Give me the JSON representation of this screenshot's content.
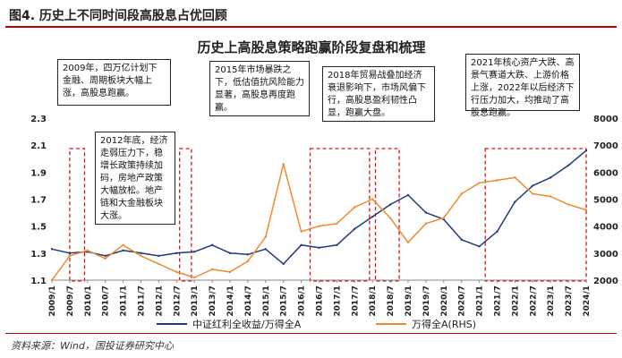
{
  "figure_label": "图4. 历史上不同时间段高股息占优回顾",
  "source": "资料来源：Wind，国投证券研究中心",
  "chart_data": {
    "type": "line",
    "title": "历史上高股息策略跑赢阶段复盘和梳理",
    "x": [
      "2009/1",
      "2009/7",
      "2010/1",
      "2010/7",
      "2011/1",
      "2011/7",
      "2012/1",
      "2012/7",
      "2013/1",
      "2013/7",
      "2014/1",
      "2014/7",
      "2015/1",
      "2015/7",
      "2016/1",
      "2016/7",
      "2017/1",
      "2017/7",
      "2018/1",
      "2018/7",
      "2019/1",
      "2019/7",
      "2020/1",
      "2020/7",
      "2021/1",
      "2021/7",
      "2022/1",
      "2022/7",
      "2023/1",
      "2023/7",
      "2024/1"
    ],
    "left_axis": {
      "ylim": [
        1.1,
        2.3
      ],
      "ticks": [
        "1.1",
        "1.3",
        "1.5",
        "1.7",
        "1.9",
        "2.1",
        "2.3"
      ]
    },
    "right_axis": {
      "ylim": [
        2000,
        8000
      ],
      "ticks": [
        "2000",
        "3000",
        "4000",
        "5000",
        "6000",
        "7000",
        "8000"
      ]
    },
    "series": [
      {
        "name": "中证红利全收益/万得全A",
        "axis": "left",
        "color": "#1f3a7a",
        "values": [
          1.33,
          1.3,
          1.31,
          1.28,
          1.32,
          1.3,
          1.28,
          1.3,
          1.31,
          1.36,
          1.3,
          1.29,
          1.33,
          1.22,
          1.36,
          1.34,
          1.36,
          1.48,
          1.57,
          1.66,
          1.73,
          1.6,
          1.55,
          1.4,
          1.35,
          1.46,
          1.68,
          1.8,
          1.86,
          1.95,
          2.06
        ]
      },
      {
        "name": "万得全A(RHS)",
        "axis": "right",
        "color": "#f08a2c",
        "values": [
          2000,
          2900,
          3100,
          2800,
          3300,
          2900,
          2600,
          2300,
          2100,
          2400,
          2300,
          2700,
          3600,
          6300,
          3800,
          4000,
          4100,
          4700,
          5000,
          4300,
          3400,
          4100,
          4300,
          5200,
          5600,
          5700,
          5800,
          5200,
          5100,
          4800,
          4600
        ]
      }
    ],
    "highlight_periods": [
      {
        "from": "2009/7",
        "to": "2009/12"
      },
      {
        "from": "2012/8",
        "to": "2012/12"
      },
      {
        "from": "2016/4",
        "to": "2017/12"
      },
      {
        "from": "2018/2",
        "to": "2018/10"
      },
      {
        "from": "2021/3",
        "to": "2024/1"
      }
    ],
    "annotations": [
      "2009年，四万亿计划下金融、周期板块大幅上涨，高股息跑赢。",
      "2012年底，经济走弱压力下，稳增长政策持续加码，房地产政策大幅放松。地产链和大金融板块大涨。",
      "2015年市场暴跌之下，低估值抗风险能力显著，高股息再度跑赢。",
      "2018年贸易战叠加经济衰退影响下，市场风偏下行，高股息盈利韧性凸显，跑赢大盘。",
      "2021年核心资产大跌、高景气赛道大跌、上游价格上涨，2022年以后经济下行压力加大，均推动了高股息跑赢。"
    ],
    "legend_position": "bottom"
  }
}
